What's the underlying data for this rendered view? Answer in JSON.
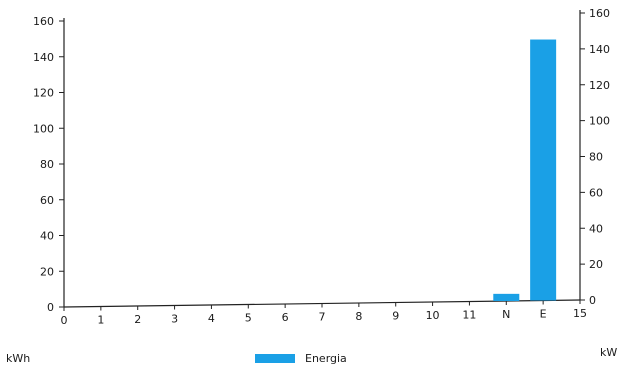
{
  "chart_data": {
    "type": "bar",
    "categories": [
      "0",
      "1",
      "2",
      "3",
      "4",
      "5",
      "6",
      "7",
      "8",
      "9",
      "10",
      "11",
      "N",
      "E",
      "15"
    ],
    "series": [
      {
        "name": "Energia",
        "values": [
          0,
          0,
          0,
          0,
          0,
          0,
          0,
          0,
          0,
          0,
          0,
          0,
          4,
          146,
          0
        ],
        "color": "#1aa0e6"
      }
    ],
    "left_axis": {
      "label": "kWh",
      "ticks": [
        0,
        20,
        40,
        60,
        80,
        100,
        120,
        140,
        160
      ],
      "ylim": [
        0,
        160
      ]
    },
    "right_axis": {
      "label": "kW",
      "ticks": [
        0,
        20,
        40,
        60,
        80,
        100,
        120,
        140,
        160
      ],
      "ylim": [
        0,
        160
      ]
    },
    "legend": {
      "position": "bottom-center"
    },
    "grid": false
  }
}
